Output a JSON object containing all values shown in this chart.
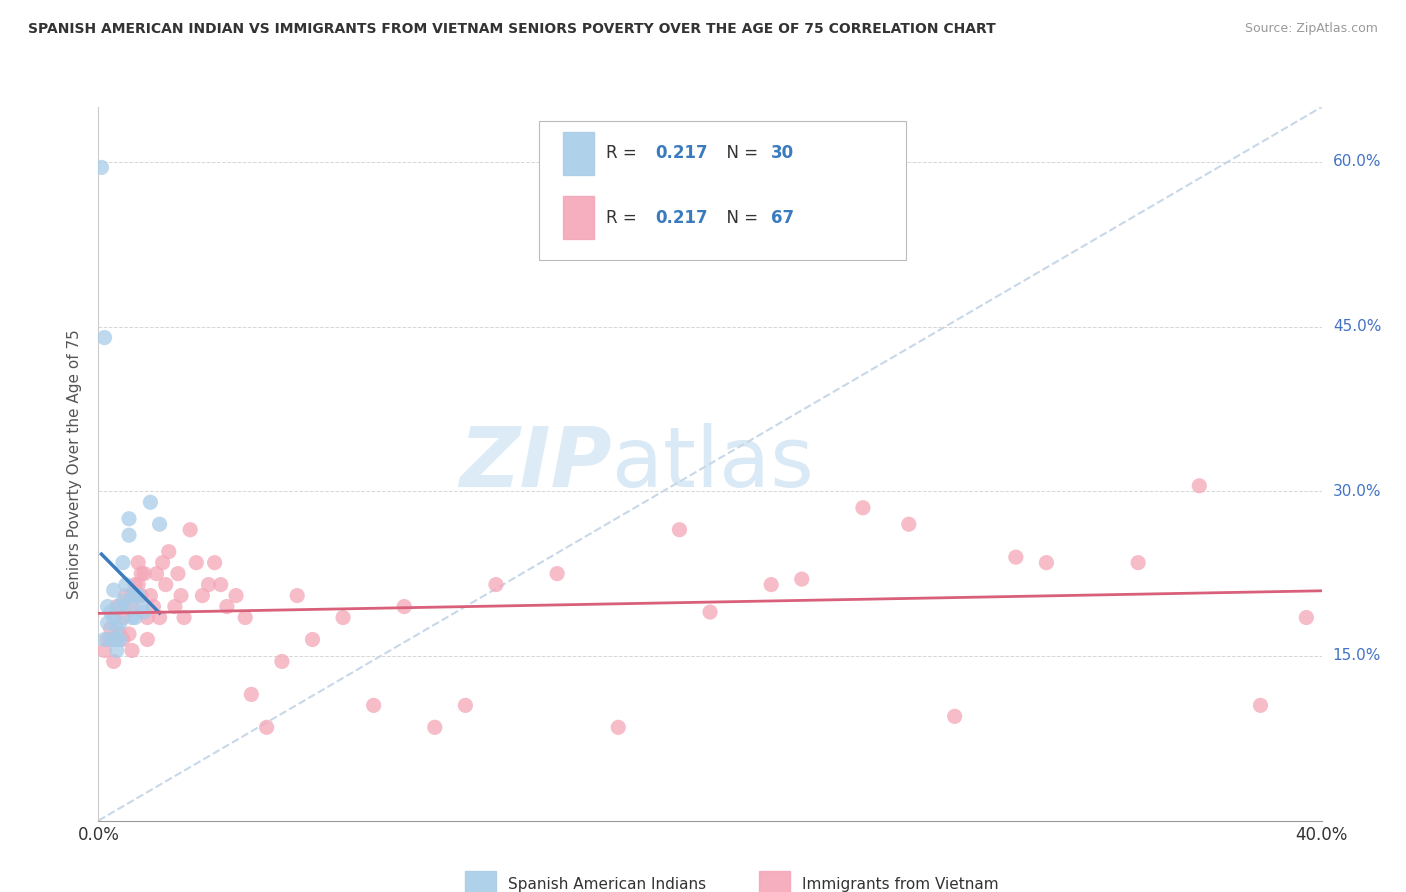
{
  "title": "SPANISH AMERICAN INDIAN VS IMMIGRANTS FROM VIETNAM SENIORS POVERTY OVER THE AGE OF 75 CORRELATION CHART",
  "source": "Source: ZipAtlas.com",
  "ylabel": "Seniors Poverty Over the Age of 75",
  "x_min": 0.0,
  "x_max": 0.4,
  "y_min": 0.0,
  "y_max": 0.65,
  "y_ticks_right": [
    0.15,
    0.3,
    0.45,
    0.6
  ],
  "y_tick_labels_right": [
    "15.0%",
    "30.0%",
    "45.0%",
    "60.0%"
  ],
  "legend_R_blue": "0.217",
  "legend_N_blue": "30",
  "legend_R_pink": "0.217",
  "legend_N_pink": "67",
  "blue_color": "#a8cce8",
  "blue_line_color": "#3a7bbf",
  "pink_color": "#f4a7b8",
  "pink_line_color": "#d9607a",
  "diagonal_color": "#c8d8e8",
  "watermark_zip": "ZIP",
  "watermark_atlas": "atlas",
  "blue_scatter_x": [
    0.001,
    0.002,
    0.002,
    0.003,
    0.003,
    0.004,
    0.004,
    0.005,
    0.005,
    0.006,
    0.006,
    0.006,
    0.007,
    0.007,
    0.007,
    0.008,
    0.008,
    0.009,
    0.009,
    0.01,
    0.01,
    0.011,
    0.011,
    0.012,
    0.012,
    0.013,
    0.014,
    0.015,
    0.017,
    0.02
  ],
  "blue_scatter_y": [
    0.595,
    0.44,
    0.165,
    0.195,
    0.18,
    0.19,
    0.165,
    0.21,
    0.185,
    0.175,
    0.165,
    0.155,
    0.195,
    0.18,
    0.165,
    0.235,
    0.2,
    0.215,
    0.195,
    0.275,
    0.26,
    0.205,
    0.185,
    0.205,
    0.185,
    0.205,
    0.195,
    0.19,
    0.29,
    0.27
  ],
  "pink_scatter_x": [
    0.002,
    0.003,
    0.004,
    0.005,
    0.005,
    0.006,
    0.007,
    0.008,
    0.008,
    0.009,
    0.01,
    0.011,
    0.011,
    0.012,
    0.013,
    0.013,
    0.014,
    0.014,
    0.015,
    0.016,
    0.016,
    0.017,
    0.018,
    0.019,
    0.02,
    0.021,
    0.022,
    0.023,
    0.025,
    0.026,
    0.027,
    0.028,
    0.03,
    0.032,
    0.034,
    0.036,
    0.038,
    0.04,
    0.042,
    0.045,
    0.048,
    0.05,
    0.055,
    0.06,
    0.065,
    0.07,
    0.08,
    0.09,
    0.1,
    0.11,
    0.12,
    0.13,
    0.15,
    0.17,
    0.19,
    0.22,
    0.25,
    0.28,
    0.31,
    0.34,
    0.36,
    0.38,
    0.395,
    0.3,
    0.265,
    0.23,
    0.2
  ],
  "pink_scatter_y": [
    0.155,
    0.165,
    0.175,
    0.165,
    0.145,
    0.195,
    0.17,
    0.185,
    0.165,
    0.205,
    0.17,
    0.195,
    0.155,
    0.215,
    0.235,
    0.215,
    0.225,
    0.205,
    0.225,
    0.185,
    0.165,
    0.205,
    0.195,
    0.225,
    0.185,
    0.235,
    0.215,
    0.245,
    0.195,
    0.225,
    0.205,
    0.185,
    0.265,
    0.235,
    0.205,
    0.215,
    0.235,
    0.215,
    0.195,
    0.205,
    0.185,
    0.115,
    0.085,
    0.145,
    0.205,
    0.165,
    0.185,
    0.105,
    0.195,
    0.085,
    0.105,
    0.215,
    0.225,
    0.085,
    0.265,
    0.215,
    0.285,
    0.095,
    0.235,
    0.235,
    0.305,
    0.105,
    0.185,
    0.24,
    0.27,
    0.22,
    0.19
  ]
}
